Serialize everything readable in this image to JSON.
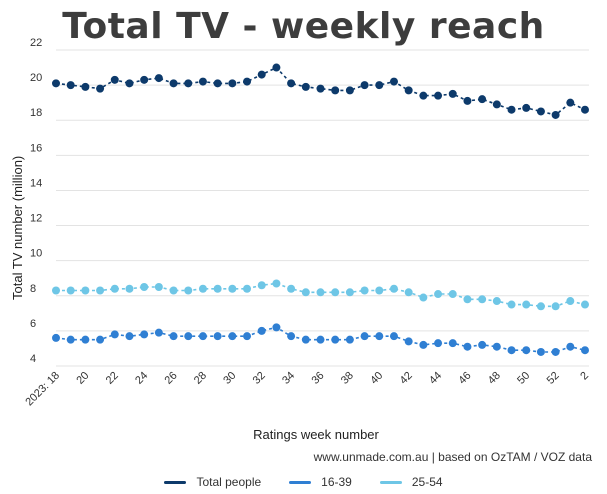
{
  "title": "Total TV - weekly reach",
  "source_note": "www.unmade.com.au | based on OzTAM / VOZ data",
  "chart_data": {
    "type": "line",
    "title": "Total TV - weekly reach",
    "xlabel": "Ratings week number",
    "ylabel": "Total TV number (million)",
    "ylim": [
      4,
      22
    ],
    "y_ticks": [
      4,
      6,
      8,
      10,
      12,
      14,
      16,
      18,
      20,
      22
    ],
    "grid": "horizontal",
    "legend_position": "bottom",
    "x": [
      "2023: 18",
      "19",
      "20",
      "21",
      "22",
      "23",
      "24",
      "25",
      "26",
      "27",
      "28",
      "29",
      "30",
      "31",
      "32",
      "33",
      "34",
      "35",
      "36",
      "37",
      "38",
      "39",
      "40",
      "41",
      "42",
      "43",
      "44",
      "45",
      "46",
      "47",
      "48",
      "49",
      "50",
      "51",
      "52",
      "1",
      "2"
    ],
    "x_tick_labels": [
      "2023: 18",
      "20",
      "22",
      "24",
      "26",
      "28",
      "30",
      "32",
      "34",
      "36",
      "38",
      "40",
      "42",
      "44",
      "46",
      "48",
      "50",
      "52",
      "2"
    ],
    "series": [
      {
        "name": "Total people",
        "color": "#0d3a6b",
        "values": [
          20.1,
          20.0,
          19.9,
          19.8,
          20.3,
          20.1,
          20.3,
          20.4,
          20.1,
          20.1,
          20.2,
          20.1,
          20.1,
          20.2,
          20.6,
          21.0,
          20.1,
          19.9,
          19.8,
          19.7,
          19.7,
          20.0,
          20.0,
          20.2,
          19.7,
          19.4,
          19.4,
          19.5,
          19.1,
          19.2,
          18.9,
          18.6,
          18.7,
          18.5,
          18.3,
          19.0,
          18.6
        ]
      },
      {
        "name": "16-39",
        "color": "#2f7fd3",
        "values": [
          5.6,
          5.5,
          5.5,
          5.5,
          5.8,
          5.7,
          5.8,
          5.9,
          5.7,
          5.7,
          5.7,
          5.7,
          5.7,
          5.7,
          6.0,
          6.2,
          5.7,
          5.5,
          5.5,
          5.5,
          5.5,
          5.7,
          5.7,
          5.7,
          5.4,
          5.2,
          5.3,
          5.3,
          5.1,
          5.2,
          5.1,
          4.9,
          4.9,
          4.8,
          4.8,
          5.1,
          4.9
        ]
      },
      {
        "name": "25-54",
        "color": "#6ec6e6",
        "values": [
          8.3,
          8.3,
          8.3,
          8.3,
          8.4,
          8.4,
          8.5,
          8.5,
          8.3,
          8.3,
          8.4,
          8.4,
          8.4,
          8.4,
          8.6,
          8.7,
          8.4,
          8.2,
          8.2,
          8.2,
          8.2,
          8.3,
          8.3,
          8.4,
          8.2,
          7.9,
          8.1,
          8.1,
          7.8,
          7.8,
          7.7,
          7.5,
          7.5,
          7.4,
          7.4,
          7.7,
          7.5
        ]
      }
    ]
  }
}
